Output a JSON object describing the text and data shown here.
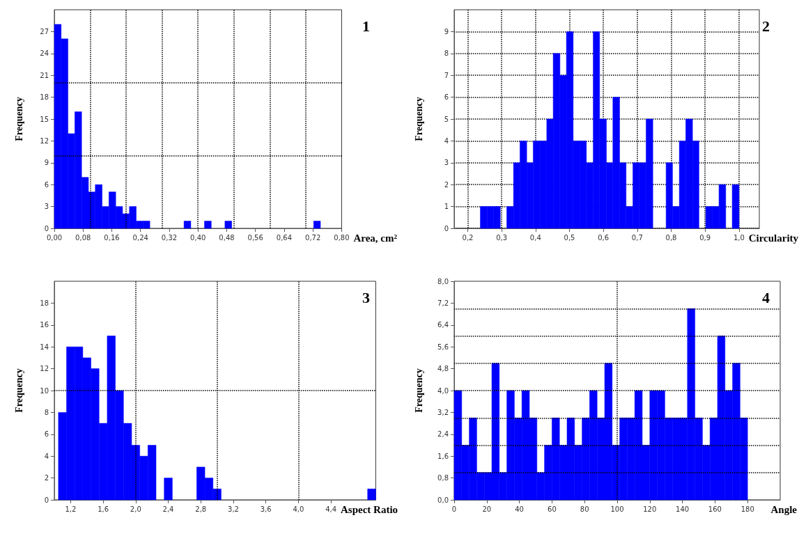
{
  "chart_data": [
    {
      "type": "histogram",
      "annotations": [
        "1"
      ],
      "xlabel": "Area, cm²",
      "ylabel": "Frequency",
      "color": "#0000ff",
      "bins": [
        0,
        0.019,
        0.038,
        0.057,
        0.076,
        0.095,
        0.114,
        0.133,
        0.152,
        0.171,
        0.19,
        0.209,
        0.228,
        0.247,
        0.266,
        0.285,
        0.304,
        0.323,
        0.342,
        0.361,
        0.38,
        0.399,
        0.418,
        0.437,
        0.456,
        0.475,
        0.494,
        0.513,
        0.532,
        0.551,
        0.57,
        0.589,
        0.608,
        0.627,
        0.646,
        0.665,
        0.684,
        0.703,
        0.722,
        0.741
      ],
      "values": [
        28,
        26,
        13,
        16,
        7,
        5,
        6,
        3,
        5,
        3,
        2,
        3,
        1,
        1,
        0,
        0,
        0,
        0,
        0,
        1,
        0,
        0,
        1,
        0,
        0,
        1,
        0,
        0,
        0,
        0,
        0,
        0,
        0,
        0,
        0,
        0,
        0,
        0,
        1
      ],
      "xlim": [
        0,
        0.8
      ],
      "xticks": [
        {
          "value": 0,
          "label": "0,00"
        },
        {
          "value": 0.08,
          "label": "0,08"
        },
        {
          "value": 0.16,
          "label": "0,16"
        },
        {
          "value": 0.24,
          "label": "0,24"
        },
        {
          "value": 0.32,
          "label": "0,32"
        },
        {
          "value": 0.4,
          "label": "0,40"
        },
        {
          "value": 0.48,
          "label": "0,48"
        },
        {
          "value": 0.56,
          "label": "0,56"
        },
        {
          "value": 0.64,
          "label": "0,64"
        },
        {
          "value": 0.72,
          "label": "0,72"
        },
        {
          "value": 0.8,
          "label": "0,80"
        }
      ],
      "ylim": [
        0,
        30
      ],
      "yticks": [
        0,
        3,
        6,
        9,
        12,
        15,
        18,
        21,
        24,
        27
      ],
      "ref_lines": [
        {
          "axis": "x",
          "value": 0.1,
          "color": "#000000",
          "line_style": "dotted"
        },
        {
          "axis": "x",
          "value": 0.2,
          "color": "#000000",
          "line_style": "dotted"
        },
        {
          "axis": "x",
          "value": 0.3,
          "color": "#000000",
          "line_style": "dotted"
        },
        {
          "axis": "x",
          "value": 0.4,
          "color": "#000000",
          "line_style": "dotted"
        },
        {
          "axis": "x",
          "value": 0.5,
          "color": "#000000",
          "line_style": "dotted"
        },
        {
          "axis": "x",
          "value": 0.6,
          "color": "#000000",
          "line_style": "dotted"
        },
        {
          "axis": "x",
          "value": 0.7,
          "color": "#000000",
          "line_style": "dotted"
        },
        {
          "axis": "y",
          "value": 10,
          "color": "#000000",
          "line_style": "dotted"
        },
        {
          "axis": "y",
          "value": 20,
          "color": "#000000",
          "line_style": "dotted"
        }
      ]
    },
    {
      "type": "histogram",
      "annotations": [
        "2"
      ],
      "xlabel": "Circularity",
      "ylabel": "Frequency",
      "color": "#0000ff",
      "grid": true,
      "bins": [
        0.237,
        0.257,
        0.276,
        0.296,
        0.315,
        0.335,
        0.354,
        0.374,
        0.393,
        0.413,
        0.433,
        0.452,
        0.472,
        0.491,
        0.511,
        0.53,
        0.55,
        0.57,
        0.589,
        0.609,
        0.628,
        0.648,
        0.667,
        0.687,
        0.706,
        0.726,
        0.746,
        0.765,
        0.785,
        0.804,
        0.824,
        0.843,
        0.863,
        0.882,
        0.902,
        0.922,
        0.941,
        0.961,
        0.98,
        1.0
      ],
      "values": [
        1,
        1,
        1,
        0,
        1,
        3,
        4,
        3,
        4,
        4,
        5,
        8,
        7,
        9,
        4,
        4,
        3,
        9,
        5,
        3,
        6,
        3,
        1,
        3,
        3,
        5,
        0,
        0,
        3,
        1,
        4,
        5,
        4,
        0,
        1,
        1,
        2,
        0,
        2
      ],
      "xlim": [
        0.16,
        1.06
      ],
      "xticks": [
        {
          "value": 0.2,
          "label": "0,2"
        },
        {
          "value": 0.3,
          "label": "0,3"
        },
        {
          "value": 0.4,
          "label": "0,4"
        },
        {
          "value": 0.5,
          "label": "0,5"
        },
        {
          "value": 0.6,
          "label": "0,6"
        },
        {
          "value": 0.7,
          "label": "0,7"
        },
        {
          "value": 0.8,
          "label": "0,8"
        },
        {
          "value": 0.9,
          "label": "0,9"
        },
        {
          "value": 1.0,
          "label": "1,0"
        }
      ],
      "ylim": [
        0,
        10
      ],
      "yticks": [
        0,
        1,
        2,
        3,
        4,
        5,
        6,
        7,
        8,
        9
      ]
    },
    {
      "type": "histogram",
      "annotations": [
        "3"
      ],
      "xlabel": "Aspect Ratio",
      "ylabel": "Frequency",
      "color": "#0000ff",
      "bins": [
        1.05,
        1.15,
        1.25,
        1.35,
        1.45,
        1.55,
        1.65,
        1.75,
        1.85,
        1.95,
        2.05,
        2.15,
        2.25,
        2.35,
        2.45,
        2.55,
        2.65,
        2.75,
        2.85,
        2.95,
        3.05,
        3.15,
        3.25,
        3.35,
        3.45,
        3.55,
        3.65,
        3.75,
        3.85,
        3.95,
        4.05,
        4.15,
        4.25,
        4.35,
        4.45,
        4.55,
        4.65,
        4.75,
        4.85,
        4.95
      ],
      "values": [
        8,
        14,
        14,
        13,
        12,
        7,
        15,
        10,
        7,
        5,
        4,
        5,
        0,
        2,
        0,
        0,
        0,
        3,
        2,
        1,
        0,
        0,
        0,
        0,
        0,
        0,
        0,
        0,
        0,
        0,
        0,
        0,
        0,
        0,
        0,
        0,
        0,
        0,
        1
      ],
      "xlim": [
        1.0,
        4.95
      ],
      "xticks": [
        {
          "value": 1.2,
          "label": "1,2"
        },
        {
          "value": 1.6,
          "label": "1,6"
        },
        {
          "value": 2.0,
          "label": "2,0"
        },
        {
          "value": 2.4,
          "label": "2,4"
        },
        {
          "value": 2.8,
          "label": "2,8"
        },
        {
          "value": 3.2,
          "label": "3,2"
        },
        {
          "value": 3.6,
          "label": "3,6"
        },
        {
          "value": 4.0,
          "label": "4,0"
        },
        {
          "value": 4.4,
          "label": "4,4"
        }
      ],
      "ylim": [
        0,
        20
      ],
      "yticks": [
        0,
        2,
        4,
        6,
        8,
        10,
        12,
        14,
        16,
        18
      ],
      "ref_lines": [
        {
          "axis": "x",
          "value": 2,
          "color": "#000000",
          "line_style": "dotted"
        },
        {
          "axis": "x",
          "value": 3,
          "color": "#000000",
          "line_style": "dotted"
        },
        {
          "axis": "x",
          "value": 4,
          "color": "#000000",
          "line_style": "dotted"
        },
        {
          "axis": "y",
          "value": 10,
          "color": "#000000",
          "line_style": "dotted"
        }
      ]
    },
    {
      "type": "histogram",
      "annotations": [
        "4"
      ],
      "xlabel": "Angle",
      "ylabel": "Frequency",
      "color": "#0000ff",
      "bins": [
        0,
        4.62,
        9.23,
        13.85,
        18.46,
        23.08,
        27.69,
        32.31,
        36.92,
        41.54,
        46.15,
        50.77,
        55.38,
        60,
        64.62,
        69.23,
        73.85,
        78.46,
        83.08,
        87.69,
        92.31,
        96.92,
        101.54,
        106.15,
        110.77,
        115.38,
        120,
        124.62,
        129.23,
        133.85,
        138.46,
        143.08,
        147.69,
        152.31,
        156.92,
        161.54,
        166.15,
        170.77,
        175.38,
        180
      ],
      "values": [
        4,
        2,
        3,
        1,
        1,
        5,
        1,
        4,
        3,
        4,
        3,
        1,
        2,
        3,
        2,
        3,
        2,
        3,
        4,
        3,
        5,
        2,
        3,
        3,
        4,
        2,
        4,
        4,
        3,
        3,
        3,
        7,
        3,
        2,
        3,
        6,
        4,
        5,
        3
      ],
      "xlim": [
        0,
        200
      ],
      "xticks": [
        0,
        20,
        40,
        60,
        80,
        100,
        120,
        140,
        160,
        180
      ],
      "ylim": [
        0,
        8
      ],
      "yticks": [
        {
          "value": 0,
          "label": "0,0"
        },
        {
          "value": 0.8,
          "label": "0,8"
        },
        {
          "value": 1.6,
          "label": "1,6"
        },
        {
          "value": 2.4,
          "label": "2,4"
        },
        {
          "value": 3.2,
          "label": "3,2"
        },
        {
          "value": 4.0,
          "label": "4,0"
        },
        {
          "value": 4.8,
          "label": "4,8"
        },
        {
          "value": 5.6,
          "label": "5,6"
        },
        {
          "value": 6.4,
          "label": "6,4"
        },
        {
          "value": 7.2,
          "label": "7,2"
        },
        {
          "value": 8.0,
          "label": "8,0"
        }
      ],
      "ref_lines": [
        {
          "axis": "x",
          "value": 100,
          "color": "#000000",
          "line_style": "dotted"
        },
        {
          "axis": "y",
          "value": 1,
          "color": "#000000",
          "line_style": "dotted"
        },
        {
          "axis": "y",
          "value": 2,
          "color": "#000000",
          "line_style": "dotted"
        },
        {
          "axis": "y",
          "value": 3,
          "color": "#000000",
          "line_style": "dotted"
        },
        {
          "axis": "y",
          "value": 4,
          "color": "#000000",
          "line_style": "dotted"
        },
        {
          "axis": "y",
          "value": 5,
          "color": "#000000",
          "line_style": "dotted"
        },
        {
          "axis": "y",
          "value": 6,
          "color": "#000000",
          "line_style": "dotted"
        },
        {
          "axis": "y",
          "value": 7,
          "color": "#000000",
          "line_style": "dotted"
        }
      ]
    }
  ]
}
